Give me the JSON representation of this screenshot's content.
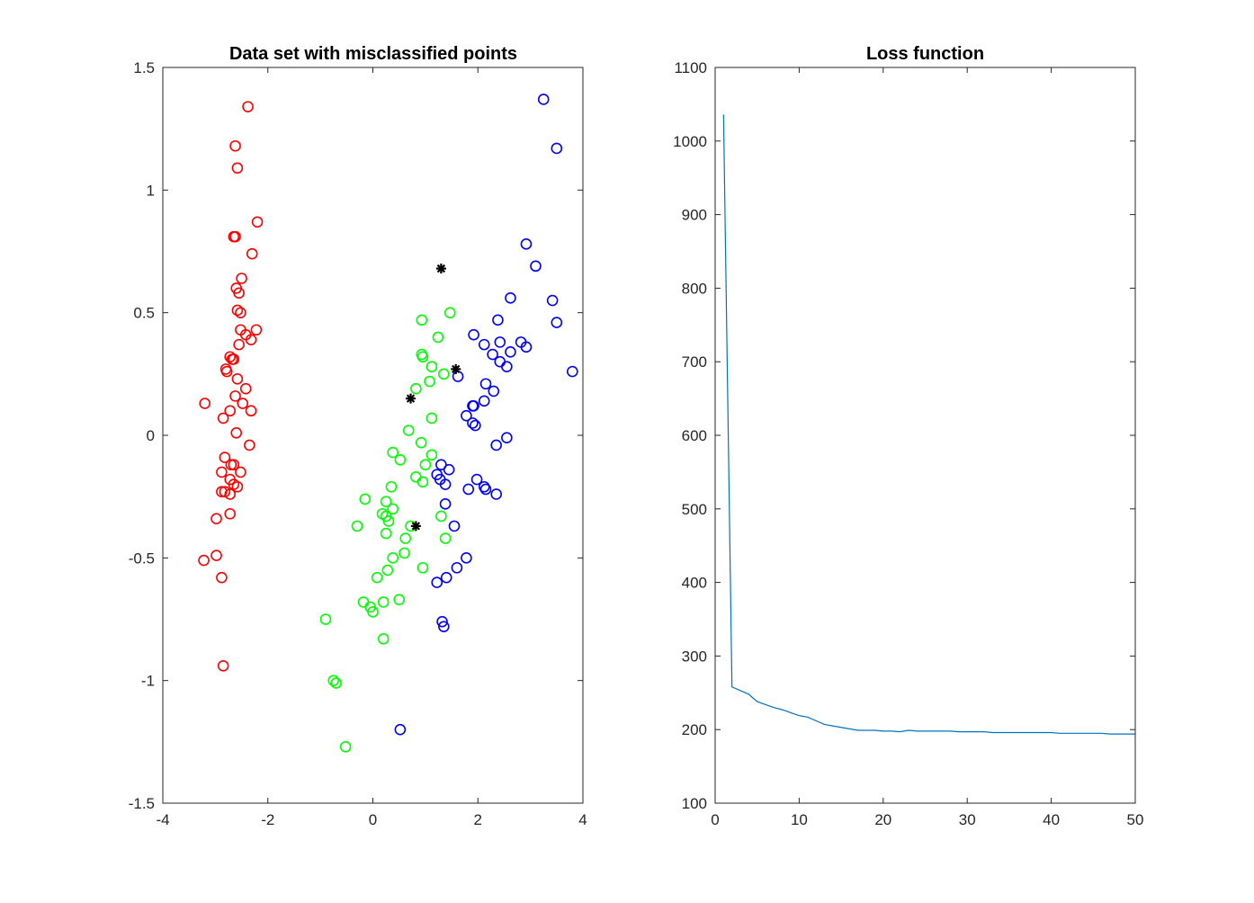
{
  "chart_data": [
    {
      "type": "scatter",
      "title": "Data set with misclassified points",
      "xlabel": "",
      "ylabel": "",
      "xlim": [
        -4,
        4
      ],
      "ylim": [
        -1.5,
        1.5
      ],
      "xticks": [
        "-4",
        "-2",
        "0",
        "2",
        "4"
      ],
      "yticks": [
        "-1.5",
        "-1",
        "-0.5",
        "0",
        "0.5",
        "1",
        "1.5"
      ],
      "grid": false,
      "legend": "none",
      "series": [
        {
          "color": "#ff0000",
          "marker": "circle",
          "points": [
            [
              -2.38,
              1.34
            ],
            [
              -2.62,
              1.18
            ],
            [
              -2.58,
              1.09
            ],
            [
              -2.2,
              0.87
            ],
            [
              -2.65,
              0.81
            ],
            [
              -2.62,
              0.81
            ],
            [
              -2.3,
              0.74
            ],
            [
              -2.5,
              0.64
            ],
            [
              -2.6,
              0.6
            ],
            [
              -2.55,
              0.58
            ],
            [
              -2.58,
              0.51
            ],
            [
              -2.52,
              0.5
            ],
            [
              -2.22,
              0.43
            ],
            [
              -2.52,
              0.43
            ],
            [
              -2.42,
              0.41
            ],
            [
              -2.32,
              0.39
            ],
            [
              -2.55,
              0.37
            ],
            [
              -2.72,
              0.32
            ],
            [
              -2.68,
              0.31
            ],
            [
              -2.65,
              0.31
            ],
            [
              -2.8,
              0.27
            ],
            [
              -2.78,
              0.26
            ],
            [
              -2.58,
              0.23
            ],
            [
              -2.42,
              0.19
            ],
            [
              -2.62,
              0.16
            ],
            [
              -3.2,
              0.13
            ],
            [
              -2.48,
              0.13
            ],
            [
              -2.72,
              0.1
            ],
            [
              -2.32,
              0.1
            ],
            [
              -2.85,
              0.07
            ],
            [
              -2.6,
              0.01
            ],
            [
              -2.35,
              -0.04
            ],
            [
              -2.82,
              -0.09
            ],
            [
              -2.7,
              -0.12
            ],
            [
              -2.65,
              -0.12
            ],
            [
              -2.88,
              -0.15
            ],
            [
              -2.52,
              -0.15
            ],
            [
              -2.72,
              -0.18
            ],
            [
              -2.65,
              -0.2
            ],
            [
              -2.58,
              -0.21
            ],
            [
              -2.88,
              -0.23
            ],
            [
              -2.82,
              -0.23
            ],
            [
              -2.72,
              -0.24
            ],
            [
              -2.72,
              -0.32
            ],
            [
              -2.98,
              -0.34
            ],
            [
              -2.98,
              -0.49
            ],
            [
              -3.22,
              -0.51
            ],
            [
              -2.88,
              -0.58
            ],
            [
              -2.85,
              -0.94
            ]
          ]
        },
        {
          "color": "#00ff00",
          "marker": "circle",
          "points": [
            [
              1.47,
              0.5
            ],
            [
              0.93,
              0.47
            ],
            [
              1.24,
              0.4
            ],
            [
              0.93,
              0.33
            ],
            [
              0.95,
              0.32
            ],
            [
              1.12,
              0.28
            ],
            [
              1.35,
              0.25
            ],
            [
              1.08,
              0.22
            ],
            [
              0.82,
              0.19
            ],
            [
              1.12,
              0.07
            ],
            [
              0.68,
              0.02
            ],
            [
              0.92,
              -0.03
            ],
            [
              0.38,
              -0.07
            ],
            [
              1.12,
              -0.08
            ],
            [
              0.52,
              -0.1
            ],
            [
              1.0,
              -0.12
            ],
            [
              0.82,
              -0.17
            ],
            [
              0.95,
              -0.19
            ],
            [
              0.35,
              -0.21
            ],
            [
              -0.15,
              -0.26
            ],
            [
              0.25,
              -0.27
            ],
            [
              0.38,
              -0.3
            ],
            [
              0.18,
              -0.32
            ],
            [
              0.25,
              -0.33
            ],
            [
              0.3,
              -0.35
            ],
            [
              1.3,
              -0.33
            ],
            [
              0.72,
              -0.37
            ],
            [
              -0.3,
              -0.37
            ],
            [
              0.25,
              -0.4
            ],
            [
              1.38,
              -0.42
            ],
            [
              0.62,
              -0.42
            ],
            [
              0.6,
              -0.48
            ],
            [
              0.38,
              -0.5
            ],
            [
              0.28,
              -0.55
            ],
            [
              0.95,
              -0.54
            ],
            [
              0.08,
              -0.58
            ],
            [
              -0.18,
              -0.68
            ],
            [
              0.2,
              -0.68
            ],
            [
              0.5,
              -0.67
            ],
            [
              -0.05,
              -0.7
            ],
            [
              0.0,
              -0.72
            ],
            [
              -0.9,
              -0.75
            ],
            [
              0.2,
              -0.83
            ],
            [
              -0.75,
              -1.0
            ],
            [
              -0.7,
              -1.01
            ],
            [
              -0.52,
              -1.27
            ]
          ]
        },
        {
          "color": "#0000ff",
          "marker": "circle",
          "points": [
            [
              3.25,
              1.37
            ],
            [
              3.5,
              1.17
            ],
            [
              2.92,
              0.78
            ],
            [
              3.1,
              0.69
            ],
            [
              2.62,
              0.56
            ],
            [
              3.42,
              0.55
            ],
            [
              2.38,
              0.47
            ],
            [
              3.5,
              0.46
            ],
            [
              1.92,
              0.41
            ],
            [
              2.42,
              0.38
            ],
            [
              2.82,
              0.38
            ],
            [
              2.12,
              0.37
            ],
            [
              2.92,
              0.36
            ],
            [
              2.62,
              0.34
            ],
            [
              2.28,
              0.33
            ],
            [
              2.42,
              0.3
            ],
            [
              2.55,
              0.28
            ],
            [
              3.8,
              0.26
            ],
            [
              1.62,
              0.24
            ],
            [
              2.15,
              0.21
            ],
            [
              2.3,
              0.18
            ],
            [
              2.12,
              0.14
            ],
            [
              1.9,
              0.12
            ],
            [
              1.92,
              0.12
            ],
            [
              1.78,
              0.08
            ],
            [
              1.9,
              0.05
            ],
            [
              1.95,
              0.04
            ],
            [
              2.55,
              -0.01
            ],
            [
              2.35,
              -0.04
            ],
            [
              1.98,
              -0.18
            ],
            [
              1.82,
              -0.22
            ],
            [
              2.12,
              -0.21
            ],
            [
              2.15,
              -0.22
            ],
            [
              2.35,
              -0.24
            ],
            [
              1.3,
              -0.12
            ],
            [
              1.45,
              -0.14
            ],
            [
              1.22,
              -0.16
            ],
            [
              1.28,
              -0.18
            ],
            [
              1.38,
              -0.2
            ],
            [
              1.38,
              -0.28
            ],
            [
              1.55,
              -0.37
            ],
            [
              1.78,
              -0.5
            ],
            [
              1.6,
              -0.54
            ],
            [
              1.4,
              -0.58
            ],
            [
              1.22,
              -0.6
            ],
            [
              1.32,
              -0.76
            ],
            [
              1.35,
              -0.78
            ],
            [
              0.52,
              -1.2
            ]
          ]
        },
        {
          "color": "#000000",
          "marker": "asterisk",
          "points": [
            [
              1.3,
              0.68
            ],
            [
              1.58,
              0.27
            ],
            [
              0.72,
              0.15
            ],
            [
              0.82,
              -0.37
            ]
          ]
        }
      ]
    },
    {
      "type": "line",
      "title": "Loss function",
      "xlabel": "",
      "ylabel": "",
      "xlim": [
        0,
        50
      ],
      "ylim": [
        100,
        1100
      ],
      "xticks": [
        "0",
        "10",
        "20",
        "30",
        "40",
        "50"
      ],
      "yticks": [
        "100",
        "200",
        "300",
        "400",
        "500",
        "600",
        "700",
        "800",
        "900",
        "1000",
        "1100"
      ],
      "grid": false,
      "legend": "none",
      "series": [
        {
          "color": "#0072bd",
          "x": [
            1,
            2,
            3,
            4,
            5,
            6,
            7,
            8,
            9,
            10,
            11,
            12,
            13,
            14,
            15,
            16,
            17,
            18,
            19,
            20,
            21,
            22,
            23,
            24,
            25,
            26,
            27,
            28,
            29,
            30,
            31,
            32,
            33,
            34,
            35,
            36,
            37,
            38,
            39,
            40,
            41,
            42,
            43,
            44,
            45,
            46,
            47,
            48,
            49,
            50
          ],
          "y": [
            1036,
            258,
            253,
            248,
            238,
            234,
            230,
            227,
            223,
            219,
            217,
            212,
            207,
            205,
            203,
            201,
            199,
            199,
            199,
            198,
            198,
            197,
            199,
            198,
            198,
            198,
            198,
            198,
            197,
            197,
            197,
            197,
            196,
            196,
            196,
            196,
            196,
            196,
            196,
            196,
            195,
            195,
            195,
            195,
            195,
            195,
            194,
            194,
            194,
            194
          ]
        }
      ]
    }
  ]
}
